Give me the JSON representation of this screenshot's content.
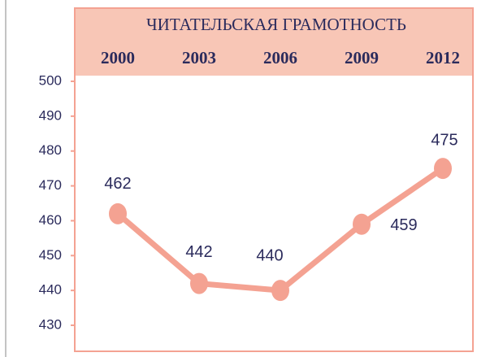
{
  "chart_data": {
    "type": "line",
    "title": "ЧИТАТЕЛЬСКАЯ ГРАМОТНОСТЬ",
    "categories": [
      "2000",
      "2003",
      "2006",
      "2009",
      "2012"
    ],
    "series": [
      {
        "name": null,
        "color": "#f4a292",
        "values": [
          462,
          442,
          440,
          459,
          475
        ]
      }
    ],
    "ylim": [
      430,
      500
    ],
    "yticks": [
      430,
      440,
      450,
      460,
      470,
      480,
      490,
      500
    ]
  }
}
